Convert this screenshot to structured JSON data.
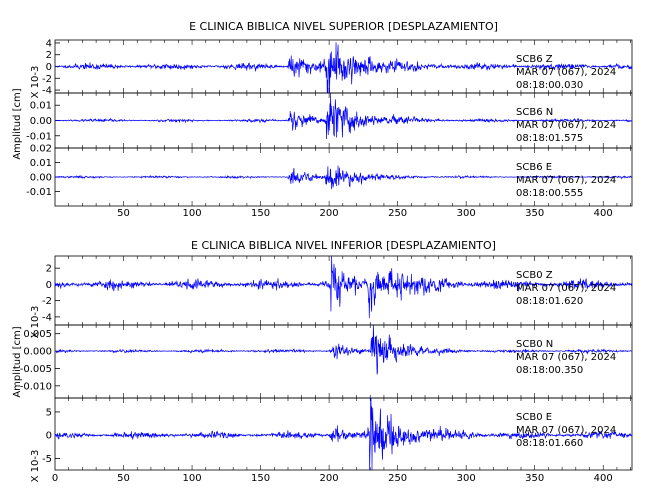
{
  "chart_data": [
    {
      "type": "line",
      "title": "E CLINICA BIBLICA NIVEL SUPERIOR [DESPLAZAMIENTO]",
      "ylabel": "Amplitud [cm]",
      "xlim": [
        0,
        421
      ],
      "x_ticks": [
        "50",
        "100",
        "150",
        "200",
        "250",
        "300",
        "350",
        "400"
      ],
      "traces": [
        {
          "name": "SCB6 Z",
          "date": "MAR 07 (067), 2024",
          "time": "08:18:00.030",
          "scale": "X 10-3",
          "ylim": [
            -4.5,
            4.5
          ],
          "y_ticks": [
            "4",
            "2",
            "0",
            "-2",
            "-4"
          ],
          "y_tick_values": [
            4,
            2,
            0,
            -2,
            -4
          ],
          "noise": 0.3,
          "onset": 170,
          "peak": 4.2,
          "events": [
            [
              170,
              35,
              2.6
            ],
            [
              197,
              60,
              4.3
            ]
          ],
          "seed": 11
        },
        {
          "name": "SCB6 N",
          "date": "MAR 07 (067), 2024",
          "time": "08:18:01.575",
          "scale": "",
          "ylim": [
            -0.018,
            0.018
          ],
          "y_ticks": [
            "0.01",
            "0.00",
            "-0.01"
          ],
          "y_tick_values": [
            0.01,
            0,
            -0.01
          ],
          "noise": 0.0005,
          "onset": 170,
          "peak": 0.016,
          "events": [
            [
              170,
              35,
              0.008
            ],
            [
              197,
              60,
              0.016
            ]
          ],
          "seed": 23
        },
        {
          "name": "SCB6 E",
          "date": "MAR 07 (067), 2024",
          "time": "08:18:00.555",
          "scale": "",
          "ylim": [
            -0.02,
            0.02
          ],
          "y_ticks": [
            "0.02",
            "0.01",
            "0.00",
            "-0.01"
          ],
          "y_tick_values": [
            0.02,
            0.01,
            0,
            -0.01
          ],
          "noise": 0.0004,
          "onset": 170,
          "peak": 0.012,
          "events": [
            [
              170,
              35,
              0.005
            ],
            [
              197,
              50,
              0.012
            ]
          ],
          "seed": 37
        }
      ]
    },
    {
      "type": "line",
      "title": "E CLINICA BIBLICA NIVEL INFERIOR [DESPLAZAMIENTO]",
      "ylabel": "Amplitud [cm]",
      "xlim": [
        0,
        421
      ],
      "x_ticks": [
        "0",
        "50",
        "100",
        "150",
        "200",
        "250",
        "300",
        "350",
        "400"
      ],
      "traces": [
        {
          "name": "SCB0 Z",
          "date": "MAR 07 (067), 2024",
          "time": "08:18:01.620",
          "scale": "X 10-3",
          "ylim": [
            -5,
            3.5
          ],
          "y_ticks": [
            "2",
            "0",
            "-2",
            "-4"
          ],
          "y_tick_values": [
            2,
            0,
            -2,
            -4
          ],
          "noise": 0.35,
          "onset": 200,
          "peak": 3.6,
          "events": [
            [
              200,
              25,
              3.4
            ],
            [
              228,
              60,
              2.8
            ]
          ],
          "seed": 53
        },
        {
          "name": "SCB0 N",
          "date": "MAR 07 (067), 2024",
          "time": "08:18:00.350",
          "scale": "",
          "ylim": [
            -0.0135,
            0.0075
          ],
          "y_ticks": [
            "0.005",
            "0.000",
            "-0.005",
            "-0.010"
          ],
          "y_tick_values": [
            0.005,
            0,
            -0.005,
            -0.01
          ],
          "noise": 0.00025,
          "onset": 200,
          "peak": 0.012,
          "events": [
            [
              200,
              25,
              0.003
            ],
            [
              230,
              50,
              0.0065
            ]
          ],
          "seed": 71
        },
        {
          "name": "SCB0 E",
          "date": "MAR 07 (067), 2024",
          "time": "08:18:01.660",
          "scale": "X 10-3",
          "ylim": [
            -7.5,
            8
          ],
          "y_ticks": [
            "5",
            "0",
            "-5"
          ],
          "y_tick_values": [
            5,
            0,
            -5
          ],
          "noise": 0.4,
          "onset": 200,
          "peak": 7,
          "events": [
            [
              200,
              25,
              2.5
            ],
            [
              228,
              60,
              6.5
            ]
          ],
          "seed": 89
        }
      ]
    }
  ],
  "colors": {
    "trace": "#0000ff",
    "axis": "#000000"
  }
}
